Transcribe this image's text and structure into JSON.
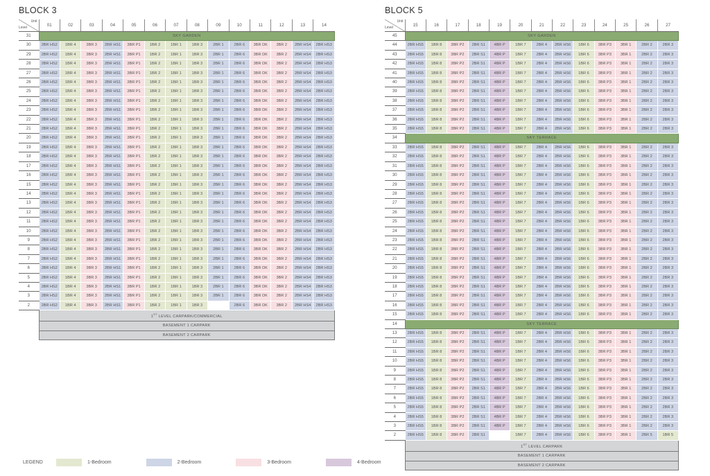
{
  "legend": {
    "title": "LEGEND",
    "items": [
      {
        "label": "1-Bedroom",
        "color": "#e3e8d0"
      },
      {
        "label": "2-Bedroom",
        "color": "#cdd5e6"
      },
      {
        "label": "3-Bedroom",
        "color": "#f8dfe2"
      },
      {
        "label": "4-Bedroom",
        "color": "#d8c8dc"
      }
    ]
  },
  "corner": {
    "unit": "Unit",
    "level": "Level"
  },
  "block3": {
    "title": "BLOCK 3",
    "units": [
      "01",
      "02",
      "03",
      "04",
      "05",
      "06",
      "07",
      "08",
      "09",
      "10",
      "11",
      "12",
      "13",
      "14"
    ],
    "unit_types": [
      "2BR HS2",
      "1BR 4",
      "3BR 3",
      "2BR HS1",
      "3BR P1",
      "1BR 2",
      "1BR 1",
      "1BR 3",
      "2BR 1",
      "2BR 6",
      "3BR DK",
      "3BR 2",
      "2BR HS4",
      "2BR HS3"
    ],
    "unit_classes": [
      "c2",
      "c1",
      "c3",
      "c2",
      "c3",
      "c1",
      "c1",
      "c1",
      "c2",
      "c2",
      "c3",
      "c3",
      "c2",
      "c2"
    ],
    "sky_garden": {
      "level": "31",
      "label": "SKY GARDEN"
    },
    "levels": [
      "30",
      "29",
      "28",
      "27",
      "26",
      "25",
      "24",
      "23",
      "22",
      "21",
      "20",
      "19",
      "18",
      "17",
      "16",
      "15",
      "14",
      "13",
      "12",
      "11",
      "10",
      "9",
      "8",
      "7",
      "6",
      "5",
      "4",
      "3",
      "2"
    ],
    "level2_vacant_unit": "09",
    "podium": [
      "1ST LEVEL CARPARK/COMMERCIAL",
      "BASEMENT 1 CARPARK",
      "BASEMENT 2 CARPARK"
    ]
  },
  "block5": {
    "title": "BLOCK 5",
    "units": [
      "15",
      "16",
      "17",
      "18",
      "19",
      "20",
      "21",
      "22",
      "23",
      "24",
      "25",
      "26",
      "27"
    ],
    "unit_types": [
      "2BR HS5",
      "1BR 8",
      "3BR P2",
      "2BR S1",
      "4BR P",
      "1BR 7",
      "2BR 4",
      "2BR HS6",
      "1BR 6",
      "3BR P3",
      "3BR 1",
      "2BR 2",
      "2BR 3"
    ],
    "unit_classes": [
      "c2",
      "c1",
      "c3",
      "c2",
      "c4",
      "c1",
      "c2",
      "c2",
      "c1",
      "c3",
      "c3",
      "c2",
      "c2"
    ],
    "sky_garden": {
      "level": "45",
      "label": "SKY GARDEN"
    },
    "sky_terraces": [
      {
        "level": "34",
        "label": "SKY TERRACE"
      },
      {
        "level": "14",
        "label": "SKY TERRACE"
      }
    ],
    "levels": [
      "44",
      "43",
      "42",
      "41",
      "40",
      "39",
      "38",
      "37",
      "36",
      "35",
      "34",
      "33",
      "32",
      "31",
      "30",
      "29",
      "28",
      "27",
      "26",
      "25",
      "24",
      "23",
      "22",
      "21",
      "20",
      "19",
      "18",
      "17",
      "16",
      "15",
      "14",
      "13",
      "12",
      "11",
      "10",
      "9",
      "8",
      "7",
      "6",
      "5",
      "4",
      "3",
      "2"
    ],
    "level2": {
      "unit_types": [
        "2BR HS5",
        "1BR 8",
        "3BR P2",
        "2BR S1",
        "",
        "1BR 7",
        "2BR 4",
        "2BR HS6",
        "1BR 6",
        "3BR P3",
        "3BR 1",
        "2BR 5",
        "1BR 5"
      ],
      "unit_classes": [
        "c2",
        "c1",
        "c3",
        "c2",
        "c0",
        "c1",
        "c2",
        "c2",
        "c1",
        "c3",
        "c3",
        "c2",
        "c1"
      ]
    },
    "podium": [
      "1ST LEVEL CARPARK",
      "BASEMENT 1 CARPARK",
      "BASEMENT 2 CARPARK"
    ]
  }
}
